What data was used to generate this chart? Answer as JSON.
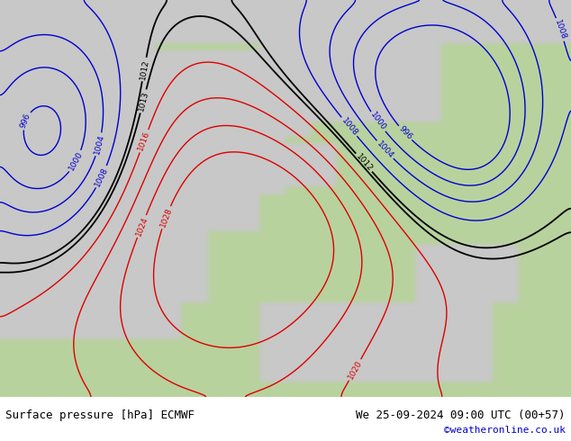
{
  "title_left": "Surface pressure [hPa] ECMWF",
  "title_right": "We 25-09-2024 09:00 UTC (00+57)",
  "credit": "©weatheronline.co.uk",
  "land_color": [
    184,
    210,
    158
  ],
  "sea_color": [
    200,
    200,
    200
  ],
  "isobar_red": "#dd0000",
  "isobar_blue": "#0000cc",
  "isobar_black": "#000000",
  "footer_fontsize": 9,
  "credit_color": "#0000cc",
  "figsize": [
    6.34,
    4.9
  ],
  "dpi": 100,
  "xlim": [
    -55,
    55
  ],
  "ylim": [
    27,
    82
  ],
  "red_levels": [
    1016,
    1020,
    1024,
    1028
  ],
  "blue_levels": [
    996,
    1000,
    1004,
    1008
  ],
  "black_levels": [
    1012,
    1013
  ]
}
